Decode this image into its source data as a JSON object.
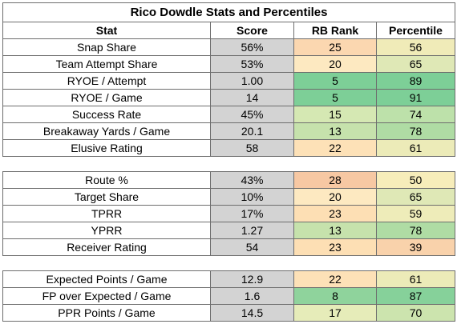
{
  "title": "Rico Dowdle Stats and Percentiles",
  "headers": [
    "Stat",
    "Score",
    "RB Rank",
    "Percentile"
  ],
  "sections": [
    [
      {
        "stat": "Snap Share",
        "score": "56%",
        "rank": "25",
        "pct": "56",
        "rank_color": "#fbd7b0",
        "pct_color": "#f0ebb8"
      },
      {
        "stat": "Team Attempt Share",
        "score": "53%",
        "rank": "20",
        "pct": "65",
        "rank_color": "#fde9c1",
        "pct_color": "#dfe8b6"
      },
      {
        "stat": "RYOE / Attempt",
        "score": "1.00",
        "rank": "5",
        "pct": "89",
        "rank_color": "#7dcf97",
        "pct_color": "#7dcf97"
      },
      {
        "stat": "RYOE / Game",
        "score": "14",
        "rank": "5",
        "pct": "91",
        "rank_color": "#7dcf97",
        "pct_color": "#7dcf97"
      },
      {
        "stat": "Success Rate",
        "score": "45%",
        "rank": "15",
        "pct": "74",
        "rank_color": "#d5e8b3",
        "pct_color": "#bde1aa"
      },
      {
        "stat": "Breakaway Yards / Game",
        "score": "20.1",
        "rank": "13",
        "pct": "78",
        "rank_color": "#c6e2ac",
        "pct_color": "#afdca4"
      },
      {
        "stat": "Elusive Rating",
        "score": "58",
        "rank": "22",
        "pct": "61",
        "rank_color": "#fde1b7",
        "pct_color": "#ecebb8"
      }
    ],
    [
      {
        "stat": "Route %",
        "score": "43%",
        "rank": "28",
        "pct": "50",
        "rank_color": "#f7c8a3",
        "pct_color": "#f7edba"
      },
      {
        "stat": "Target Share",
        "score": "10%",
        "rank": "20",
        "pct": "65",
        "rank_color": "#fde9c1",
        "pct_color": "#dfe8b6"
      },
      {
        "stat": "TPRR",
        "score": "17%",
        "rank": "23",
        "pct": "59",
        "rank_color": "#fddfb4",
        "pct_color": "#eeecb9"
      },
      {
        "stat": "YPRR",
        "score": "1.27",
        "rank": "13",
        "pct": "78",
        "rank_color": "#c6e2ac",
        "pct_color": "#afdca4"
      },
      {
        "stat": "Receiver Rating",
        "score": "54",
        "rank": "23",
        "pct": "39",
        "rank_color": "#fddfb4",
        "pct_color": "#f9d2ab"
      }
    ],
    [
      {
        "stat": "Expected Points / Game",
        "score": "12.9",
        "rank": "22",
        "pct": "61",
        "rank_color": "#fde1b7",
        "pct_color": "#ecebb8"
      },
      {
        "stat": "FP over Expected / Game",
        "score": "1.6",
        "rank": "8",
        "pct": "87",
        "rank_color": "#8fd39c",
        "pct_color": "#86d19a"
      },
      {
        "stat": "PPR Points / Game",
        "score": "14.5",
        "rank": "17",
        "pct": "70",
        "rank_color": "#e6ecb9",
        "pct_color": "#cce4ae"
      }
    ]
  ]
}
